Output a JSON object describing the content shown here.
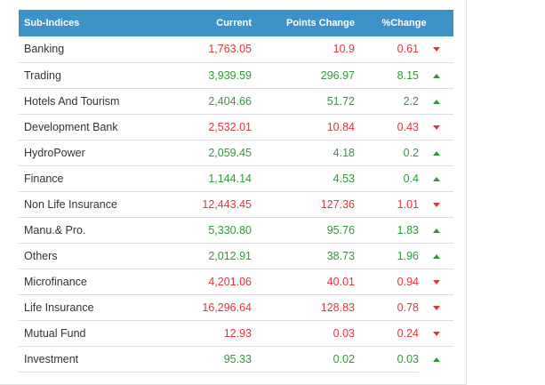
{
  "header": {
    "name": "Sub-Indices",
    "current": "Current",
    "points_change": "Points Change",
    "pct_change": "%Change"
  },
  "colors": {
    "header_bg": "#3d92c7",
    "up": "#2f9a36",
    "down": "#e3343b"
  },
  "rows": [
    {
      "name": "Banking",
      "current": "1,763.05",
      "points": "10.9",
      "pct": "0.61",
      "dir": "down"
    },
    {
      "name": "Trading",
      "current": "3,939.59",
      "points": "296.97",
      "pct": "8.15",
      "dir": "up"
    },
    {
      "name": "Hotels And Tourism",
      "current": "2,404.66",
      "points": "51.72",
      "pct": "2.2",
      "dir": "up"
    },
    {
      "name": "Development Bank",
      "current": "2,532.01",
      "points": "10.84",
      "pct": "0.43",
      "dir": "down"
    },
    {
      "name": "HydroPower",
      "current": "2,059.45",
      "points": "4.18",
      "pct": "0.2",
      "dir": "up"
    },
    {
      "name": "Finance",
      "current": "1,144.14",
      "points": "4.53",
      "pct": "0.4",
      "dir": "up"
    },
    {
      "name": "Non Life Insurance",
      "current": "12,443.45",
      "points": "127.36",
      "pct": "1.01",
      "dir": "down"
    },
    {
      "name": "Manu.& Pro.",
      "current": "5,330.80",
      "points": "95.76",
      "pct": "1.83",
      "dir": "up"
    },
    {
      "name": "Others",
      "current": "2,012.91",
      "points": "38.73",
      "pct": "1.96",
      "dir": "up"
    },
    {
      "name": "Microfinance",
      "current": "4,201.06",
      "points": "40.01",
      "pct": "0.94",
      "dir": "down"
    },
    {
      "name": "Life Insurance",
      "current": "16,296.64",
      "points": "128.83",
      "pct": "0.78",
      "dir": "down"
    },
    {
      "name": "Mutual Fund",
      "current": "12.93",
      "points": "0.03",
      "pct": "0.24",
      "dir": "down"
    },
    {
      "name": "Investment",
      "current": "95.33",
      "points": "0.02",
      "pct": "0.03",
      "dir": "up"
    }
  ]
}
